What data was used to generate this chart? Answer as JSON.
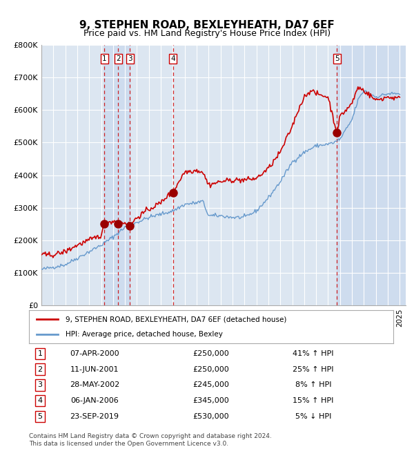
{
  "title": "9, STEPHEN ROAD, BEXLEYHEATH, DA7 6EF",
  "subtitle": "Price paid vs. HM Land Registry's House Price Index (HPI)",
  "xlabel": "",
  "ylabel": "",
  "ylim": [
    0,
    800000
  ],
  "yticks": [
    0,
    100000,
    200000,
    300000,
    400000,
    500000,
    600000,
    700000,
    800000
  ],
  "ytick_labels": [
    "£0",
    "£100K",
    "£200K",
    "£300K",
    "£400K",
    "£500K",
    "£600K",
    "£700K",
    "£800K"
  ],
  "red_line_color": "#cc0000",
  "blue_line_color": "#6699cc",
  "background_color": "#ffffff",
  "plot_bg_color": "#dce6f1",
  "grid_color": "#ffffff",
  "vline_color": "#cc0000",
  "vline_style": "dashed",
  "sale_dates_num": [
    2000.27,
    2001.44,
    2002.41,
    2006.02,
    2019.73
  ],
  "sale_prices": [
    250000,
    250000,
    245000,
    345000,
    530000
  ],
  "sale_labels": [
    "1",
    "2",
    "3",
    "4",
    "5"
  ],
  "shade_ranges": [
    [
      2000.27,
      2002.41
    ],
    [
      2019.73,
      2025.5
    ]
  ],
  "legend_entries": [
    "9, STEPHEN ROAD, BEXLEYHEATH, DA7 6EF (detached house)",
    "HPI: Average price, detached house, Bexley"
  ],
  "table_rows": [
    [
      "1",
      "07-APR-2000",
      "£250,000",
      "41% ↑ HPI"
    ],
    [
      "2",
      "11-JUN-2001",
      "£250,000",
      "25% ↑ HPI"
    ],
    [
      "3",
      "28-MAY-2002",
      "£245,000",
      "8% ↑ HPI"
    ],
    [
      "4",
      "06-JAN-2006",
      "£345,000",
      "15% ↑ HPI"
    ],
    [
      "5",
      "23-SEP-2019",
      "£530,000",
      "5% ↓ HPI"
    ]
  ],
  "footnote": "Contains HM Land Registry data © Crown copyright and database right 2024.\nThis data is licensed under the Open Government Licence v3.0.",
  "xmin": 1995.0,
  "xmax": 2025.5
}
